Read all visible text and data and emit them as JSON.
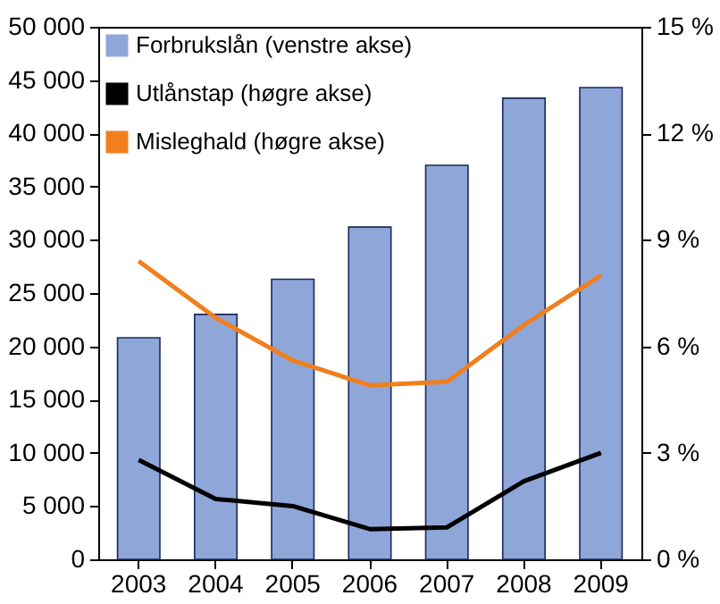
{
  "chart_data": {
    "type": "bar",
    "categories": [
      "2003",
      "2004",
      "2005",
      "2006",
      "2007",
      "2008",
      "2009"
    ],
    "series": [
      {
        "name": "Forbrukslån (venstre akse)",
        "color": "#8fa6d9",
        "values": [
          20800,
          23000,
          26300,
          31200,
          37000,
          43300,
          44300
        ]
      },
      {
        "name": "Utlånstap (høgre akse)",
        "type": "line",
        "axis": "y2",
        "color": "#000000",
        "values": [
          2.8,
          1.7,
          1.5,
          0.85,
          0.9,
          2.2,
          3.0
        ]
      },
      {
        "name": "Misleghald (høgre akse)",
        "type": "line",
        "axis": "y2",
        "color": "#f07f1d",
        "values": [
          8.4,
          6.8,
          5.6,
          4.9,
          5.0,
          6.6,
          8.0
        ]
      }
    ],
    "ylim": [
      0,
      50000
    ],
    "yticks": [
      {
        "value": 0,
        "label": "0"
      },
      {
        "value": 5000,
        "label": "5 000"
      },
      {
        "value": 10000,
        "label": "10 000"
      },
      {
        "value": 15000,
        "label": "15 000"
      },
      {
        "value": 20000,
        "label": "20 000"
      },
      {
        "value": 25000,
        "label": "25 000"
      },
      {
        "value": 30000,
        "label": "30 000"
      },
      {
        "value": 35000,
        "label": "35 000"
      },
      {
        "value": 40000,
        "label": "40 000"
      },
      {
        "value": 45000,
        "label": "45 000"
      },
      {
        "value": 50000,
        "label": "50 000"
      }
    ],
    "y2lim": [
      0,
      15
    ],
    "y2ticks": [
      {
        "value": 0,
        "label": "0 %"
      },
      {
        "value": 3,
        "label": "3 %"
      },
      {
        "value": 6,
        "label": "6 %"
      },
      {
        "value": 9,
        "label": "9 %"
      },
      {
        "value": 12,
        "label": "12 %"
      },
      {
        "value": 15,
        "label": "15 %"
      }
    ],
    "legend": "top left",
    "grid": false,
    "line_style": "solid"
  }
}
